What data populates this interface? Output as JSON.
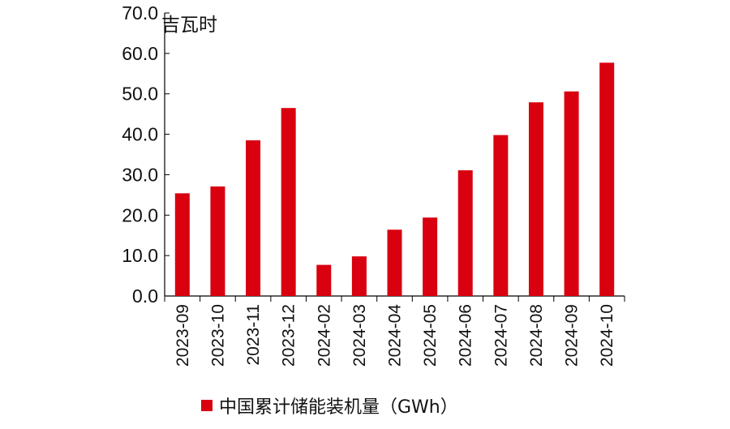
{
  "chart_data": {
    "type": "bar",
    "unit_label": "吉瓦时",
    "categories": [
      "2023-09",
      "2023-10",
      "2023-11",
      "2023-12",
      "2024-02",
      "2024-03",
      "2024-04",
      "2024-05",
      "2024-06",
      "2024-07",
      "2024-08",
      "2024-09",
      "2024-10"
    ],
    "series": [
      {
        "name": "中国累计储能装机量（GWh）",
        "color": "#d9000f",
        "values": [
          25.4,
          27.1,
          38.5,
          46.5,
          7.7,
          9.8,
          16.4,
          19.4,
          31.1,
          39.8,
          47.9,
          50.6,
          57.7
        ]
      }
    ],
    "yticks": [
      "0.0",
      "10.0",
      "20.0",
      "30.0",
      "40.0",
      "50.0",
      "60.0",
      "70.0"
    ],
    "ylim": [
      0,
      70
    ],
    "grid": false,
    "legend_position": "bottom"
  }
}
